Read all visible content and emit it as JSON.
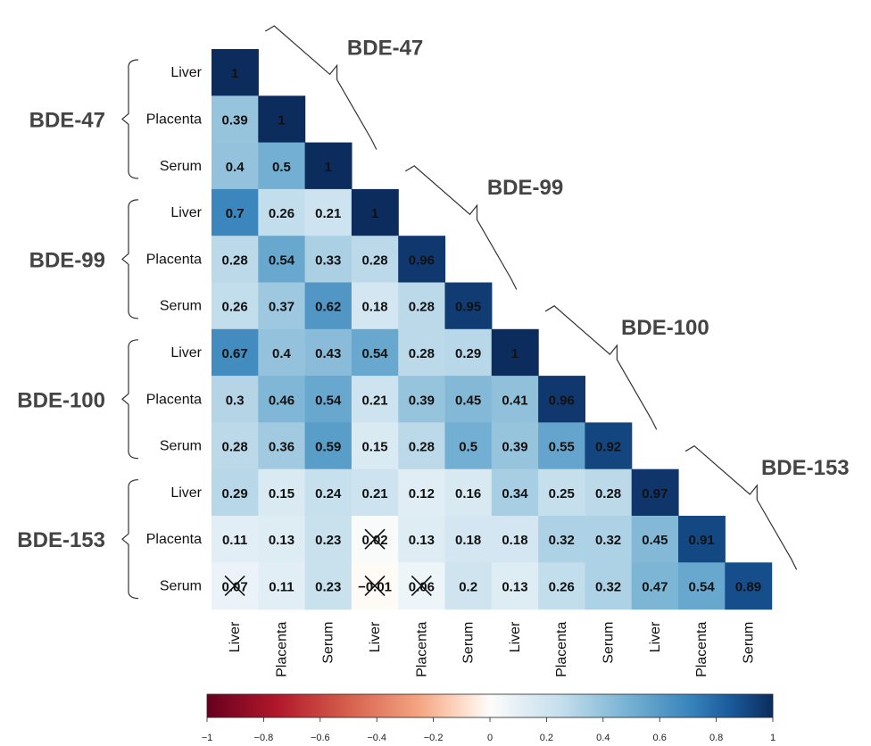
{
  "chart_data": {
    "type": "heatmap",
    "subtype": "lower-triangle correlation matrix",
    "variables": [
      {
        "group": "BDE-47",
        "tissue": "Liver"
      },
      {
        "group": "BDE-47",
        "tissue": "Placenta"
      },
      {
        "group": "BDE-47",
        "tissue": "Serum"
      },
      {
        "group": "BDE-99",
        "tissue": "Liver"
      },
      {
        "group": "BDE-99",
        "tissue": "Placenta"
      },
      {
        "group": "BDE-99",
        "tissue": "Serum"
      },
      {
        "group": "BDE-100",
        "tissue": "Liver"
      },
      {
        "group": "BDE-100",
        "tissue": "Placenta"
      },
      {
        "group": "BDE-100",
        "tissue": "Serum"
      },
      {
        "group": "BDE-153",
        "tissue": "Liver"
      },
      {
        "group": "BDE-153",
        "tissue": "Placenta"
      },
      {
        "group": "BDE-153",
        "tissue": "Serum"
      }
    ],
    "groups": [
      "BDE-47",
      "BDE-99",
      "BDE-100",
      "BDE-153"
    ],
    "matrix": [
      [
        1
      ],
      [
        0.39,
        1
      ],
      [
        0.4,
        0.5,
        1
      ],
      [
        0.7,
        0.26,
        0.21,
        1
      ],
      [
        0.28,
        0.54,
        0.33,
        0.28,
        0.96
      ],
      [
        0.26,
        0.37,
        0.62,
        0.18,
        0.28,
        0.95
      ],
      [
        0.67,
        0.4,
        0.43,
        0.54,
        0.28,
        0.29,
        1
      ],
      [
        0.3,
        0.46,
        0.54,
        0.21,
        0.39,
        0.45,
        0.41,
        0.96
      ],
      [
        0.28,
        0.36,
        0.59,
        0.15,
        0.28,
        0.5,
        0.39,
        0.55,
        0.92
      ],
      [
        0.29,
        0.15,
        0.24,
        0.21,
        0.12,
        0.16,
        0.34,
        0.25,
        0.28,
        0.97
      ],
      [
        0.11,
        0.13,
        0.23,
        0.02,
        0.13,
        0.18,
        0.18,
        0.32,
        0.32,
        0.45,
        0.91
      ],
      [
        0.07,
        0.11,
        0.23,
        -0.01,
        0.06,
        0.2,
        0.13,
        0.26,
        0.32,
        0.47,
        0.54,
        0.89
      ]
    ],
    "labels": [
      [
        "1"
      ],
      [
        "0.39",
        "1"
      ],
      [
        "0.4",
        "0.5",
        "1"
      ],
      [
        "0.7",
        "0.26",
        "0.21",
        "1"
      ],
      [
        "0.28",
        "0.54",
        "0.33",
        "0.28",
        "0.96"
      ],
      [
        "0.26",
        "0.37",
        "0.62",
        "0.18",
        "0.28",
        "0.95"
      ],
      [
        "0.67",
        "0.4",
        "0.43",
        "0.54",
        "0.28",
        "0.29",
        "1"
      ],
      [
        "0.3",
        "0.46",
        "0.54",
        "0.21",
        "0.39",
        "0.45",
        "0.41",
        "0.96"
      ],
      [
        "0.28",
        "0.36",
        "0.59",
        "0.15",
        "0.28",
        "0.5",
        "0.39",
        "0.55",
        "0.92"
      ],
      [
        "0.29",
        "0.15",
        "0.24",
        "0.21",
        "0.12",
        "0.16",
        "0.34",
        "0.25",
        "0.28",
        "0.97"
      ],
      [
        "0.11",
        "0.13",
        "0.23",
        "0.02",
        "0.13",
        "0.18",
        "0.18",
        "0.32",
        "0.32",
        "0.45",
        "0.91"
      ],
      [
        "0.07",
        "0.11",
        "0.23",
        "−0.01",
        "0.06",
        "0.2",
        "0.13",
        "0.26",
        "0.32",
        "0.47",
        "0.54",
        "0.89"
      ]
    ],
    "crossed_out": [
      [
        10,
        3
      ],
      [
        11,
        0
      ],
      [
        11,
        3
      ],
      [
        11,
        4
      ]
    ],
    "colorbar": {
      "range": [
        -1,
        1
      ],
      "ticks": [
        -1,
        -0.8,
        -0.6,
        -0.4,
        -0.2,
        0,
        0.2,
        0.4,
        0.6,
        0.8,
        1
      ],
      "tick_labels": [
        "−1",
        "−0.8",
        "−0.6",
        "−0.4",
        "−0.2",
        "0",
        "0.2",
        "0.4",
        "0.6",
        "0.8",
        "1"
      ],
      "colors": [
        {
          "v": -1,
          "c": "#67001f"
        },
        {
          "v": -0.75,
          "c": "#b2182b"
        },
        {
          "v": -0.5,
          "c": "#d6604d"
        },
        {
          "v": -0.25,
          "c": "#f4a582"
        },
        {
          "v": -0.1,
          "c": "#fddbc7"
        },
        {
          "v": 0,
          "c": "#fefdfb"
        },
        {
          "v": 0.1,
          "c": "#e4eff6"
        },
        {
          "v": 0.25,
          "c": "#c5dfec"
        },
        {
          "v": 0.5,
          "c": "#73afd2"
        },
        {
          "v": 0.7,
          "c": "#3a86bd"
        },
        {
          "v": 0.85,
          "c": "#1a5a9c"
        },
        {
          "v": 1,
          "c": "#0c2c5e"
        }
      ]
    },
    "text_color": "#111111",
    "grid": false
  }
}
